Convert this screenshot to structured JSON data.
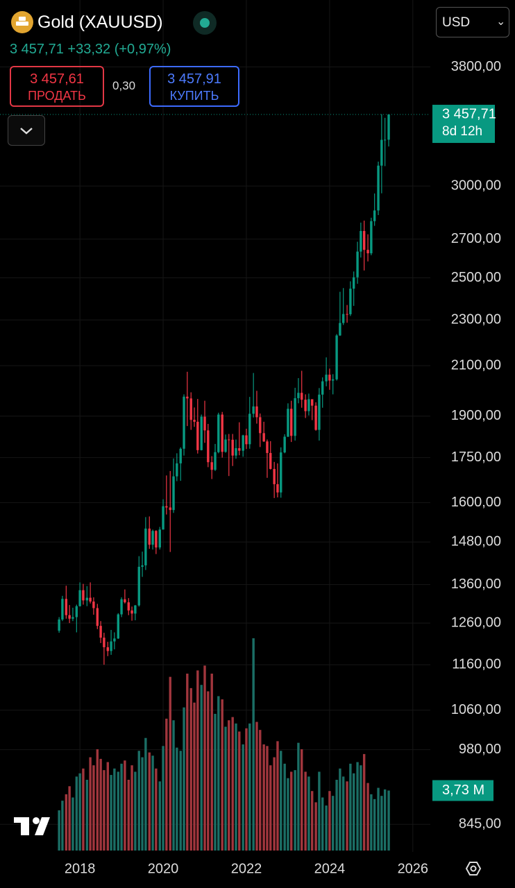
{
  "header": {
    "title": "Gold (XAUUSD)",
    "price": "3 457,71",
    "change": "+33,32",
    "change_pct": "(+0,97%)",
    "currency": "USD",
    "sell_price": "3 457,61",
    "sell_label": "ПРОДАТЬ",
    "spread": "0,30",
    "buy_price": "3 457,91",
    "buy_label": "КУПИТЬ"
  },
  "chart_data": {
    "type": "candlestick",
    "log_scale": true,
    "grid": true,
    "up_color": "#089981",
    "down_color": "#f23645",
    "volume_up_color": "#1b6e65",
    "volume_down_color": "#a1363d",
    "last_price_label": "3 457,71",
    "countdown": "8d 12h",
    "ylim": [
      800,
      4340
    ],
    "xlim": [
      2016.08,
      2026.42
    ],
    "yticks": [
      {
        "value": 3800,
        "label": "3800,00"
      },
      {
        "value": 3000,
        "label": "3000,00"
      },
      {
        "value": 2700,
        "label": "2700,00"
      },
      {
        "value": 2500,
        "label": "2500,00"
      },
      {
        "value": 2300,
        "label": "2300,00"
      },
      {
        "value": 2100,
        "label": "2100,00"
      },
      {
        "value": 1900,
        "label": "1900,00"
      },
      {
        "value": 1750,
        "label": "1750,00"
      },
      {
        "value": 1600,
        "label": "1600,00"
      },
      {
        "value": 1480,
        "label": "1480,00"
      },
      {
        "value": 1360,
        "label": "1360,00"
      },
      {
        "value": 1260,
        "label": "1260,00"
      },
      {
        "value": 1160,
        "label": "1160,00"
      },
      {
        "value": 1060,
        "label": "1060,00"
      },
      {
        "value": 980,
        "label": "980,00"
      },
      {
        "value": 845,
        "label": "845,00"
      }
    ],
    "xticks": [
      2018,
      2020,
      2022,
      2024,
      2026
    ],
    "x": [
      2017.5,
      2017.58,
      2017.67,
      2017.75,
      2017.83,
      2017.92,
      2018,
      2018.08,
      2018.17,
      2018.25,
      2018.33,
      2018.42,
      2018.5,
      2018.58,
      2018.67,
      2018.75,
      2018.83,
      2018.92,
      2019,
      2019.08,
      2019.17,
      2019.25,
      2019.33,
      2019.42,
      2019.5,
      2019.58,
      2019.67,
      2019.75,
      2019.83,
      2019.92,
      2020,
      2020.08,
      2020.17,
      2020.25,
      2020.33,
      2020.42,
      2020.5,
      2020.58,
      2020.67,
      2020.75,
      2020.83,
      2020.92,
      2021,
      2021.08,
      2021.17,
      2021.25,
      2021.33,
      2021.42,
      2021.5,
      2021.58,
      2021.67,
      2021.75,
      2021.83,
      2021.92,
      2022,
      2022.08,
      2022.17,
      2022.25,
      2022.33,
      2022.42,
      2022.5,
      2022.58,
      2022.67,
      2022.75,
      2022.83,
      2022.92,
      2023,
      2023.08,
      2023.17,
      2023.25,
      2023.33,
      2023.42,
      2023.5,
      2023.58,
      2023.67,
      2023.75,
      2023.83,
      2023.92,
      2024,
      2024.08,
      2024.17,
      2024.25,
      2024.33,
      2024.42,
      2024.5,
      2024.58,
      2024.67,
      2024.75,
      2024.83,
      2024.92,
      2025,
      2025.08,
      2025.17,
      2025.25,
      2025.33,
      2025.42
    ],
    "open": [
      1241,
      1269,
      1322,
      1280,
      1271,
      1275,
      1303,
      1345,
      1318,
      1325,
      1315,
      1298,
      1253,
      1224,
      1201,
      1192,
      1215,
      1222,
      1282,
      1321,
      1313,
      1292,
      1284,
      1305,
      1409,
      1413,
      1520,
      1472,
      1513,
      1464,
      1517,
      1589,
      1585,
      1577,
      1686,
      1730,
      1781,
      1975,
      1968,
      1886,
      1879,
      1776,
      1898,
      1847,
      1734,
      1708,
      1769,
      1906,
      1770,
      1814,
      1813,
      1757,
      1783,
      1774,
      1829,
      1797,
      1909,
      1937,
      1896,
      1837,
      1807,
      1766,
      1711,
      1660,
      1633,
      1768,
      1824,
      1928,
      1827,
      1969,
      1990,
      1963,
      1919,
      1965,
      1940,
      1849,
      1983,
      2036,
      2063,
      2039,
      2044,
      2230,
      2286,
      2327,
      2326,
      2447,
      2503,
      2634,
      2744,
      2643,
      2625,
      2798,
      2858,
      3124,
      3288,
      3289
    ],
    "high": [
      1275,
      1330,
      1357,
      1306,
      1299,
      1307,
      1366,
      1362,
      1356,
      1366,
      1326,
      1309,
      1265,
      1236,
      1214,
      1243,
      1237,
      1285,
      1326,
      1347,
      1324,
      1302,
      1306,
      1439,
      1452,
      1555,
      1557,
      1517,
      1515,
      1525,
      1611,
      1689,
      1704,
      1747,
      1765,
      1786,
      1984,
      2075,
      1992,
      1933,
      1966,
      1906,
      1959,
      1871,
      1755,
      1798,
      1913,
      1916,
      1832,
      1834,
      1834,
      1814,
      1877,
      1831,
      1853,
      1974,
      2070,
      1998,
      1910,
      1879,
      1814,
      1808,
      1735,
      1730,
      1786,
      1833,
      1949,
      1959,
      2010,
      2049,
      2079,
      1984,
      1987,
      1949,
      1953,
      2009,
      2052,
      2135,
      2088,
      2065,
      2236,
      2432,
      2450,
      2369,
      2483,
      2532,
      2686,
      2790,
      2801,
      2726,
      2817,
      2956,
      3149,
      3460,
      3435,
      3460
    ],
    "low": [
      1236,
      1265,
      1271,
      1260,
      1265,
      1237,
      1302,
      1307,
      1303,
      1310,
      1281,
      1245,
      1211,
      1160,
      1180,
      1183,
      1196,
      1221,
      1275,
      1310,
      1280,
      1266,
      1267,
      1302,
      1381,
      1400,
      1460,
      1458,
      1445,
      1458,
      1517,
      1563,
      1451,
      1568,
      1670,
      1671,
      1757,
      1863,
      1849,
      1860,
      1764,
      1775,
      1802,
      1717,
      1677,
      1704,
      1765,
      1750,
      1767,
      1687,
      1721,
      1746,
      1758,
      1753,
      1780,
      1781,
      1895,
      1872,
      1787,
      1805,
      1681,
      1709,
      1615,
      1617,
      1616,
      1765,
      1823,
      1805,
      1810,
      1949,
      1932,
      1893,
      1903,
      1885,
      1846,
      1810,
      1932,
      2016,
      2002,
      1984,
      2039,
      2228,
      2277,
      2287,
      2318,
      2365,
      2471,
      2603,
      2537,
      2583,
      2615,
      2772,
      2832,
      2957,
      3121,
      3245
    ],
    "close": [
      1269,
      1322,
      1280,
      1271,
      1275,
      1303,
      1345,
      1318,
      1325,
      1315,
      1298,
      1253,
      1224,
      1201,
      1192,
      1215,
      1222,
      1282,
      1321,
      1313,
      1292,
      1284,
      1305,
      1409,
      1413,
      1520,
      1472,
      1513,
      1464,
      1517,
      1589,
      1585,
      1577,
      1686,
      1730,
      1781,
      1975,
      1968,
      1886,
      1879,
      1776,
      1898,
      1847,
      1734,
      1708,
      1769,
      1906,
      1770,
      1814,
      1813,
      1757,
      1783,
      1774,
      1829,
      1797,
      1909,
      1937,
      1896,
      1837,
      1807,
      1766,
      1711,
      1660,
      1633,
      1768,
      1824,
      1928,
      1827,
      1969,
      1990,
      1963,
      1919,
      1965,
      1940,
      1849,
      1983,
      2036,
      2063,
      2039,
      2044,
      2230,
      2286,
      2327,
      2326,
      2447,
      2503,
      2634,
      2744,
      2643,
      2625,
      2798,
      2858,
      3124,
      3288,
      3289,
      3457.71
    ],
    "volume": [
      2.5,
      3.1,
      3.5,
      4.0,
      3.3,
      4.6,
      4.8,
      5.1,
      4.4,
      5.8,
      5.3,
      6.3,
      5.7,
      5.0,
      5.5,
      4.7,
      5.1,
      4.9,
      5.4,
      5.6,
      4.4,
      5.3,
      4.9,
      6.2,
      5.8,
      7.0,
      6.1,
      5.9,
      5.1,
      4.3,
      6.5,
      8.2,
      10.8,
      8.1,
      6.4,
      6.2,
      8.9,
      11.0,
      10.1,
      9.2,
      11.2,
      10.3,
      11.5,
      9.9,
      11.0,
      8.5,
      9.6,
      9.4,
      7.7,
      8.1,
      8.3,
      7.9,
      7.4,
      6.6,
      7.6,
      7.9,
      13.2,
      8.0,
      7.5,
      6.6,
      6.5,
      5.3,
      5.8,
      6.8,
      6.2,
      5.4,
      4.5,
      4.9,
      5.0,
      6.7,
      6.3,
      4.9,
      4.6,
      3.7,
      3.0,
      4.9,
      3.3,
      2.8,
      3.7,
      3.4,
      4.4,
      5.1,
      4.6,
      4.3,
      5.4,
      4.8,
      5.5,
      5.3,
      6.0,
      4.2,
      3.5,
      3.2,
      3.9,
      3.4,
      3.8,
      3.73
    ],
    "volume_value_labels": {
      "95": "3,73 M"
    }
  }
}
